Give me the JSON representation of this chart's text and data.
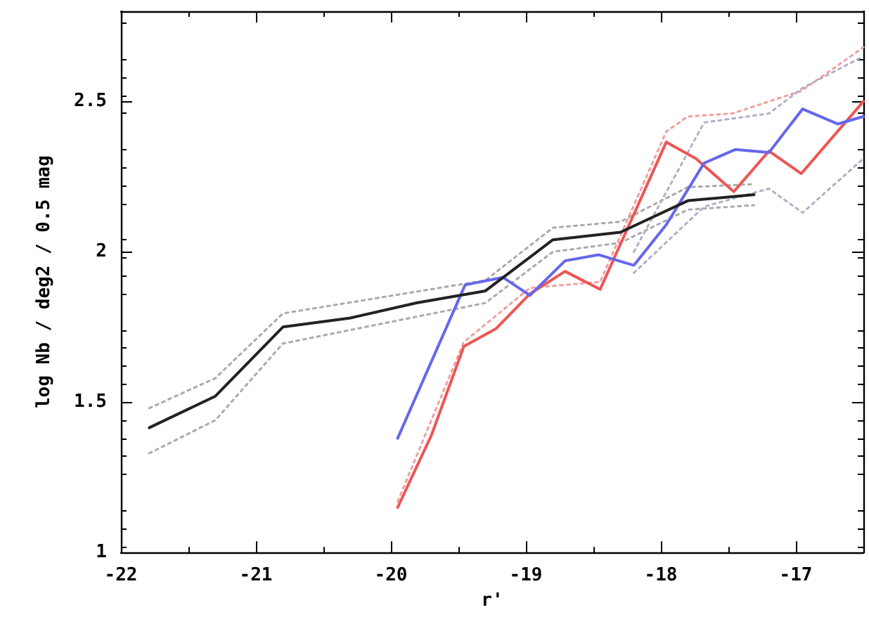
{
  "chart_data": {
    "type": "line",
    "xlabel": "r'",
    "ylabel": "log Nb / deg2 / 0.5 mag",
    "xlim": [
      -22,
      -16.5
    ],
    "xticks": [
      -22,
      -21,
      -20,
      -19,
      -18,
      -17
    ],
    "ylim": [
      1,
      2.8
    ],
    "yticks": [
      1,
      1.5,
      2,
      2.5
    ],
    "grid": false,
    "marker": "none",
    "series": [
      {
        "color": "#aaaaaa",
        "line_style": "dotted",
        "x": [
          -21.79,
          -21.3,
          -20.8,
          -19.3,
          -18.8,
          -18.3,
          -17.8,
          -17.31
        ],
        "values": [
          1.48,
          1.58,
          1.795,
          1.905,
          2.08,
          2.1,
          2.215,
          2.225
        ]
      },
      {
        "color": "#aaaaaa",
        "line_style": "dotted",
        "x": [
          -21.79,
          -21.3,
          -20.8,
          -19.3,
          -18.8,
          -18.3,
          -17.8,
          -17.31
        ],
        "values": [
          1.33,
          1.44,
          1.695,
          1.83,
          2.0,
          2.03,
          2.14,
          2.155
        ]
      },
      {
        "color": "#f0a0a0",
        "line_style": "dotted",
        "x": [
          -19.95,
          -19.46,
          -18.97,
          -18.45,
          -17.96,
          -17.8,
          -17.47,
          -16.96,
          -16.5
        ],
        "values": [
          1.17,
          1.7,
          1.88,
          1.9,
          2.4,
          2.45,
          2.46,
          2.535,
          2.68
        ]
      },
      {
        "color": "#b0b0c8",
        "line_style": "dotted",
        "x": [
          -18.2,
          -17.68,
          -17.2,
          -16.95,
          -16.5
        ],
        "values": [
          2.0,
          2.43,
          2.46,
          2.545,
          2.65
        ]
      },
      {
        "color": "#b0b0c8",
        "line_style": "dotted",
        "x": [
          -18.2,
          -17.68,
          -17.2,
          -16.95,
          -16.5
        ],
        "values": [
          1.93,
          2.15,
          2.21,
          2.13,
          2.31
        ]
      },
      {
        "color": "#ee5555",
        "line_style": "solid",
        "x": [
          -19.95,
          -19.7,
          -19.46,
          -19.22,
          -18.97,
          -18.71,
          -18.45,
          -17.96,
          -17.74,
          -17.46,
          -17.2,
          -16.96,
          -16.5
        ],
        "values": [
          1.15,
          1.39,
          1.685,
          1.745,
          1.86,
          1.935,
          1.875,
          2.365,
          2.31,
          2.2,
          2.335,
          2.26,
          2.5
        ]
      },
      {
        "color": "#6666ee",
        "line_style": "solid",
        "x": [
          -19.95,
          -19.45,
          -19.17,
          -18.97,
          -18.71,
          -18.46,
          -18.2,
          -17.96,
          -17.68,
          -17.45,
          -17.2,
          -16.95,
          -16.69,
          -16.5
        ],
        "values": [
          1.38,
          1.89,
          1.915,
          1.855,
          1.97,
          1.99,
          1.955,
          2.09,
          2.295,
          2.34,
          2.33,
          2.475,
          2.425,
          2.45
        ]
      },
      {
        "color": "#222222",
        "line_style": "solid",
        "x": [
          -21.79,
          -21.3,
          -20.8,
          -20.3,
          -19.81,
          -19.3,
          -18.8,
          -18.3,
          -17.8,
          -17.31
        ],
        "values": [
          1.415,
          1.52,
          1.75,
          1.78,
          1.83,
          1.87,
          2.04,
          2.065,
          2.17,
          2.19
        ]
      }
    ]
  }
}
